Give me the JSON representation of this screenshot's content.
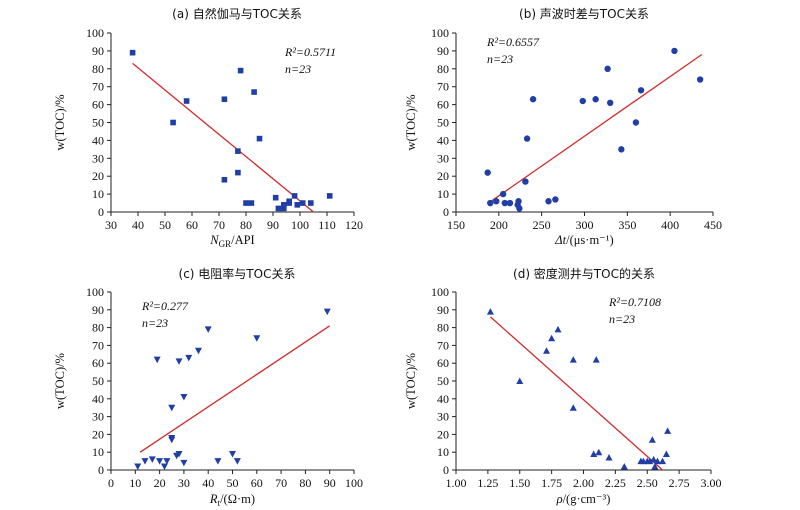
{
  "colors": {
    "marker": "#1f3fa6",
    "fit_line": "#d22a2a"
  },
  "chart_data": [
    {
      "type": "scatter",
      "title": "(a) 自然伽马与TOC关系",
      "xlabel": "N_GR/API",
      "xlabel_main": "N",
      "xlabel_sub": "GR",
      "xlabel_rest": "/API",
      "ylabel": "w(TOC)/%",
      "xlim": [
        30,
        120
      ],
      "ylim": [
        0,
        100
      ],
      "xticks": [
        30,
        40,
        50,
        60,
        70,
        80,
        90,
        100,
        110,
        120
      ],
      "yticks": [
        0,
        10,
        20,
        30,
        40,
        50,
        60,
        70,
        80,
        90,
        100
      ],
      "marker": "square",
      "r2_label": "R²=0.5711",
      "n_label": "n=23",
      "fit": [
        [
          38,
          83
        ],
        [
          105,
          0
        ]
      ],
      "points": [
        [
          38,
          89
        ],
        [
          53,
          50
        ],
        [
          58,
          62
        ],
        [
          72,
          63
        ],
        [
          72,
          18
        ],
        [
          77,
          22
        ],
        [
          77,
          34
        ],
        [
          78,
          79
        ],
        [
          80,
          5
        ],
        [
          83,
          67
        ],
        [
          82,
          5
        ],
        [
          85,
          41
        ],
        [
          91,
          8
        ],
        [
          92,
          2
        ],
        [
          94,
          2
        ],
        [
          94,
          4
        ],
        [
          96,
          5
        ],
        [
          98,
          9
        ],
        [
          99,
          4
        ],
        [
          101,
          5
        ],
        [
          104,
          5
        ],
        [
          111,
          9
        ],
        [
          96,
          6
        ]
      ]
    },
    {
      "type": "scatter",
      "title": "(b) 声波时差与TOC关系",
      "xlabel": "Δt/(μs·m⁻¹)",
      "xlabel_main": "Δt",
      "xlabel_sub": "",
      "xlabel_rest": "/(μs·m⁻¹)",
      "ylabel": "w(TOC)/%",
      "xlim": [
        150,
        450
      ],
      "ylim": [
        0,
        100
      ],
      "xticks": [
        150,
        200,
        250,
        300,
        350,
        400,
        450
      ],
      "yticks": [
        0,
        10,
        20,
        30,
        40,
        50,
        60,
        70,
        80,
        90,
        100
      ],
      "marker": "circle",
      "r2_label": "R²=0.6557",
      "n_label": "n=23",
      "fit": [
        [
          188,
          5
        ],
        [
          437,
          88
        ]
      ],
      "points": [
        [
          187,
          22
        ],
        [
          190,
          5
        ],
        [
          197,
          6
        ],
        [
          205,
          10
        ],
        [
          207,
          5
        ],
        [
          213,
          5
        ],
        [
          222,
          4
        ],
        [
          223,
          6
        ],
        [
          224,
          2
        ],
        [
          231,
          17
        ],
        [
          233,
          41
        ],
        [
          240,
          63
        ],
        [
          258,
          6
        ],
        [
          266,
          7
        ],
        [
          298,
          62
        ],
        [
          313,
          63
        ],
        [
          327,
          80
        ],
        [
          330,
          61
        ],
        [
          343,
          35
        ],
        [
          360,
          50
        ],
        [
          366,
          68
        ],
        [
          405,
          90
        ],
        [
          435,
          74
        ]
      ]
    },
    {
      "type": "scatter",
      "title": "(c) 电阻率与TOC关系",
      "xlabel": "R_t/(Ω·m)",
      "xlabel_main": "R",
      "xlabel_sub": "t",
      "xlabel_rest": "/(Ω·m)",
      "ylabel": "w(TOC)/%",
      "xlim": [
        0,
        100
      ],
      "ylim": [
        0,
        100
      ],
      "xticks": [
        0,
        10,
        20,
        30,
        40,
        50,
        60,
        70,
        80,
        90,
        100
      ],
      "yticks": [
        0,
        10,
        20,
        30,
        40,
        50,
        60,
        70,
        80,
        90,
        100
      ],
      "marker": "triangle-down",
      "r2_label": "R²=0.277",
      "n_label": "n=23",
      "fit": [
        [
          12,
          10
        ],
        [
          90,
          81
        ]
      ],
      "points": [
        [
          11,
          2
        ],
        [
          14,
          5
        ],
        [
          17,
          6
        ],
        [
          20,
          5
        ],
        [
          19,
          62
        ],
        [
          22,
          2
        ],
        [
          25,
          18
        ],
        [
          25,
          17
        ],
        [
          25,
          35
        ],
        [
          27,
          8
        ],
        [
          28,
          9
        ],
        [
          28,
          61
        ],
        [
          30,
          4
        ],
        [
          30,
          41
        ],
        [
          32,
          63
        ],
        [
          36,
          67
        ],
        [
          40,
          79
        ],
        [
          44,
          5
        ],
        [
          50,
          9
        ],
        [
          52,
          5
        ],
        [
          60,
          74
        ],
        [
          89,
          89
        ],
        [
          23,
          5
        ]
      ]
    },
    {
      "type": "scatter",
      "title": "(d) 密度测井与TOC的关系",
      "xlabel": "ρ/(g·cm⁻³)",
      "xlabel_main": "ρ",
      "xlabel_sub": "",
      "xlabel_rest": "/(g·cm⁻³)",
      "ylabel": "w(TOC)/%",
      "xlim": [
        1.0,
        3.0
      ],
      "ylim": [
        0,
        100
      ],
      "xticks": [
        "1.00",
        "1.25",
        "1.50",
        "1.75",
        "2.00",
        "2.25",
        "2.50",
        "2.75",
        "3.00"
      ],
      "yticks": [
        0,
        10,
        20,
        30,
        40,
        50,
        60,
        70,
        80,
        90,
        100
      ],
      "marker": "triangle-up",
      "r2_label": "R²=0.7108",
      "n_label": "n=23",
      "fit": [
        [
          1.27,
          86
        ],
        [
          2.62,
          0
        ]
      ],
      "points": [
        [
          1.27,
          89
        ],
        [
          1.5,
          50
        ],
        [
          1.71,
          67
        ],
        [
          1.75,
          74
        ],
        [
          1.8,
          79
        ],
        [
          1.92,
          62
        ],
        [
          1.92,
          35
        ],
        [
          2.08,
          9
        ],
        [
          2.1,
          62
        ],
        [
          2.12,
          10
        ],
        [
          2.2,
          7
        ],
        [
          2.32,
          2
        ],
        [
          2.45,
          5
        ],
        [
          2.47,
          5
        ],
        [
          2.5,
          5
        ],
        [
          2.52,
          5
        ],
        [
          2.54,
          17
        ],
        [
          2.56,
          2
        ],
        [
          2.58,
          5
        ],
        [
          2.62,
          5
        ],
        [
          2.65,
          9
        ],
        [
          2.66,
          22
        ],
        [
          2.55,
          6
        ]
      ]
    }
  ]
}
